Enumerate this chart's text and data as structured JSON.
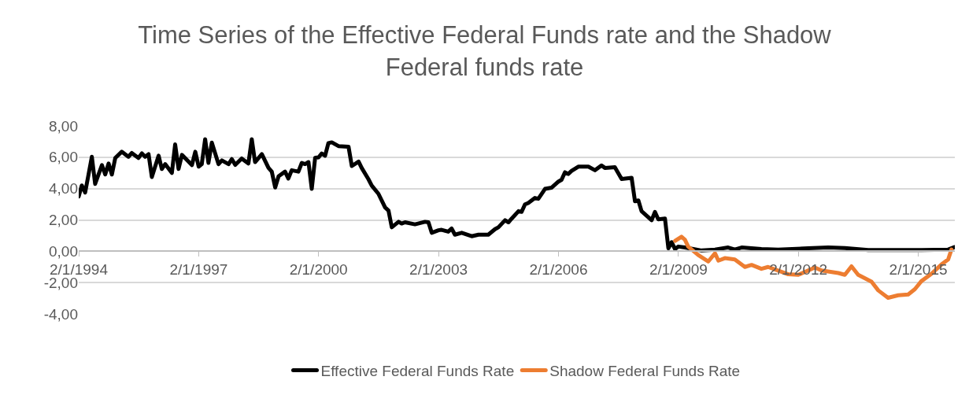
{
  "chart_data": {
    "type": "line",
    "title": "Time Series of the Effective Federal Funds rate and the Shadow Federal funds rate",
    "xlim": [
      "1994-02",
      "2016-01"
    ],
    "xticks": [
      {
        "value": "1994-02-01",
        "label": "2/1/1994"
      },
      {
        "value": "1997-02-01",
        "label": "2/1/1997"
      },
      {
        "value": "2000-02-01",
        "label": "2/1/2000"
      },
      {
        "value": "2003-02-01",
        "label": "2/1/2003"
      },
      {
        "value": "2006-02-01",
        "label": "2/1/2006"
      },
      {
        "value": "2009-02-01",
        "label": "2/1/2009"
      },
      {
        "value": "2012-02-01",
        "label": "2/1/2012"
      },
      {
        "value": "2015-02-01",
        "label": "2/1/2015"
      }
    ],
    "ylim": [
      -4,
      8
    ],
    "yticks": [
      {
        "value": -4,
        "label": "-4,00"
      },
      {
        "value": -2,
        "label": "-2,00"
      },
      {
        "value": 0,
        "label": "0,00"
      },
      {
        "value": 2,
        "label": "2,00"
      },
      {
        "value": 4,
        "label": "4,00"
      },
      {
        "value": 6,
        "label": "6,00"
      },
      {
        "value": 8,
        "label": "8,00"
      }
    ],
    "grid": "y",
    "legend": "bottom",
    "marker": "none",
    "line_style": "solid",
    "series": [
      {
        "name": "Effective Federal Funds Rate",
        "color": "#000000",
        "x": [
          "1994-02",
          "1994-03",
          "1994-04",
          "1994-06",
          "1994-07",
          "1994-09",
          "1994-10",
          "1994-11",
          "1994-12",
          "1995-01",
          "1995-03",
          "1995-05",
          "1995-06",
          "1995-08",
          "1995-09",
          "1995-10",
          "1995-11",
          "1995-12",
          "1996-02",
          "1996-03",
          "1996-04",
          "1996-06",
          "1996-07",
          "1996-08",
          "1996-09",
          "1996-12",
          "1997-01",
          "1997-02",
          "1997-03",
          "1997-04",
          "1997-05",
          "1997-06",
          "1997-08",
          "1997-09",
          "1997-11",
          "1997-12",
          "1998-01",
          "1998-03",
          "1998-05",
          "1998-06",
          "1998-07",
          "1998-09",
          "1998-11",
          "1998-12",
          "1999-01",
          "1999-02",
          "1999-04",
          "1999-05",
          "1999-06",
          "1999-08",
          "1999-09",
          "1999-10",
          "1999-11",
          "1999-12",
          "2000-01",
          "2000-02",
          "2000-03",
          "2000-04",
          "2000-05",
          "2000-06",
          "2000-08",
          "2000-11",
          "2000-12",
          "2001-02",
          "2001-03",
          "2001-05",
          "2001-06",
          "2001-08",
          "2001-10",
          "2001-11",
          "2001-12",
          "2002-02",
          "2002-03",
          "2002-04",
          "2002-07",
          "2002-10",
          "2002-11",
          "2002-12",
          "2003-02",
          "2003-03",
          "2003-05",
          "2003-06",
          "2003-07",
          "2003-09",
          "2003-12",
          "2004-02",
          "2004-05",
          "2004-07",
          "2004-08",
          "2004-10",
          "2004-11",
          "2004-12",
          "2005-02",
          "2005-03",
          "2005-04",
          "2005-05",
          "2005-07",
          "2005-08",
          "2005-10",
          "2005-12",
          "2006-02",
          "2006-03",
          "2006-04",
          "2006-05",
          "2006-06",
          "2006-08",
          "2006-11",
          "2007-01",
          "2007-03",
          "2007-04",
          "2007-07",
          "2007-09",
          "2007-12",
          "2008-01",
          "2008-02",
          "2008-03",
          "2008-06",
          "2008-07",
          "2008-08",
          "2008-10",
          "2008-11",
          "2008-12",
          "2009-01",
          "2009-02",
          "2009-04",
          "2009-09",
          "2010-01",
          "2010-05",
          "2010-07",
          "2010-09",
          "2011-03",
          "2011-08",
          "2012-05",
          "2012-11",
          "2013-04",
          "2013-11",
          "2015-03",
          "2015-11",
          "2016-01"
        ],
        "values": [
          3.5,
          4.2,
          3.75,
          6.03,
          4.3,
          5.5,
          4.9,
          5.6,
          4.9,
          5.95,
          6.35,
          6.03,
          6.27,
          5.95,
          6.25,
          6.03,
          6.2,
          4.74,
          6.1,
          5.25,
          5.56,
          5.0,
          6.82,
          5.25,
          6.15,
          5.5,
          6.35,
          5.4,
          5.56,
          7.15,
          5.64,
          6.93,
          5.56,
          5.8,
          5.56,
          5.88,
          5.51,
          5.92,
          5.6,
          7.15,
          5.69,
          6.2,
          5.32,
          5.08,
          4.07,
          4.79,
          5.08,
          4.64,
          5.17,
          5.08,
          5.64,
          5.56,
          5.69,
          3.98,
          5.97,
          5.99,
          6.24,
          6.1,
          6.9,
          6.95,
          6.71,
          6.67,
          5.44,
          5.72,
          5.32,
          4.61,
          4.19,
          3.67,
          2.8,
          2.6,
          1.53,
          1.88,
          1.77,
          1.85,
          1.72,
          1.88,
          1.85,
          1.18,
          1.34,
          1.37,
          1.25,
          1.45,
          1.06,
          1.18,
          0.96,
          1.06,
          1.06,
          1.41,
          1.53,
          1.98,
          1.85,
          2.09,
          2.56,
          2.51,
          2.99,
          3.08,
          3.4,
          3.35,
          3.98,
          4.06,
          4.45,
          4.56,
          5.04,
          4.93,
          5.13,
          5.4,
          5.4,
          5.17,
          5.48,
          5.32,
          5.36,
          4.61,
          4.69,
          3.19,
          3.24,
          2.56,
          1.98,
          2.51,
          2.04,
          2.09,
          0.19,
          0.58,
          0.14,
          0.3,
          0.24,
          0.05,
          0.11,
          0.24,
          0.11,
          0.24,
          0.14,
          0.11,
          0.19,
          0.24,
          0.2,
          0.08,
          0.08,
          0.11,
          0.27
        ]
      },
      {
        "name": "Shadow Federal Funds Rate",
        "color": "#ed7d31",
        "x": [
          "2009-01",
          "2009-03",
          "2009-04",
          "2009-05",
          "2009-08",
          "2009-11",
          "2010-01",
          "2010-02",
          "2010-04",
          "2010-07",
          "2010-10",
          "2010-12",
          "2011-03",
          "2011-05",
          "2011-08",
          "2011-11",
          "2012-02",
          "2012-07",
          "2012-09",
          "2013-02",
          "2013-04",
          "2013-06",
          "2013-08",
          "2013-12",
          "2014-02",
          "2014-05",
          "2014-08",
          "2014-11",
          "2015-01",
          "2015-03",
          "2015-06",
          "2015-09",
          "2015-11",
          "2015-12"
        ],
        "values": [
          0.66,
          0.93,
          0.74,
          0.3,
          -0.24,
          -0.65,
          -0.13,
          -0.6,
          -0.44,
          -0.52,
          -1.0,
          -0.87,
          -1.12,
          -1.0,
          -1.23,
          -1.47,
          -1.5,
          -1.04,
          -1.23,
          -1.39,
          -1.5,
          -0.96,
          -1.5,
          -1.94,
          -2.5,
          -2.97,
          -2.81,
          -2.76,
          -2.42,
          -1.91,
          -1.44,
          -0.84,
          -0.52,
          0.11
        ]
      }
    ]
  }
}
